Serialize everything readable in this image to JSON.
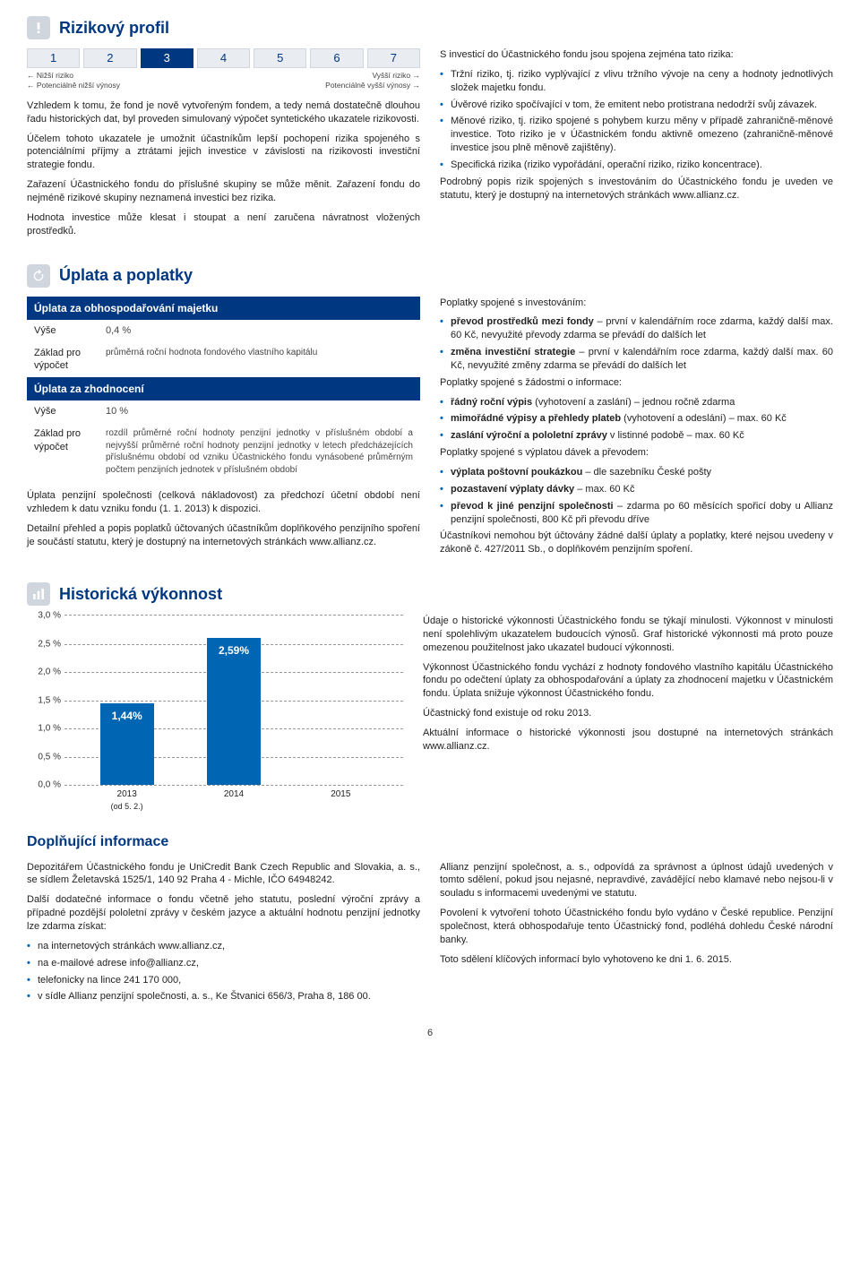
{
  "risk": {
    "title": "Rizikový profil",
    "scale": {
      "values": [
        "1",
        "2",
        "3",
        "4",
        "5",
        "6",
        "7"
      ],
      "selected_index": 2
    },
    "labels": {
      "left_top": "Nižší riziko",
      "left_bottom": "Potenciálně nižší výnosy",
      "right_top": "Vyšší riziko",
      "right_bottom": "Potenciálně vyšší výnosy"
    },
    "left_paras": [
      "Vzhledem k tomu, že fond je nově vytvořeným fondem, a tedy nemá dostatečně dlouhou řadu historických dat, byl proveden simulovaný výpočet syntetického ukazatele rizikovosti.",
      "Účelem tohoto ukazatele je umožnit účastníkům lepší pochopení rizika spojeného s potenciálními příjmy a ztrátami jejich investice v závislosti na rizikovosti investiční strategie fondu.",
      "Zařazení Účastnického fondu do příslušné skupiny se může měnit. Zařazení fondu do nejméně rizikové skupiny neznamená investici bez rizika.",
      "Hodnota investice může klesat i stoupat a není zaručena návratnost vložených prostředků."
    ],
    "right_intro": "S investicí do Účastnického fondu jsou spojena zejména tato rizika:",
    "right_items": [
      "Tržní riziko, tj. riziko vyplývající z vlivu tržního vývoje na ceny a hodnoty jednotlivých složek majetku fondu.",
      "Úvěrové riziko spočívající v tom, že emitent nebo protistrana nedodrží svůj závazek.",
      "Měnové riziko, tj. riziko spojené s pohybem kurzu měny v případě zahraničně-měnové investice. Toto riziko je v Účastnickém fondu aktivně omezeno (zahraničně-měnové investice jsou plně měnově zajištěny).",
      "Specifická rizika (riziko vypořádání, operační riziko, riziko koncentrace)."
    ],
    "right_closing": "Podrobný popis rizik spojených s investováním do Účastnického fondu je uveden ve statutu, který je dostupný na internetových stránkách www.allianz.cz."
  },
  "fees": {
    "title": "Úplata a poplatky",
    "table": {
      "header1": "Úplata za obhospodařování majetku",
      "row1_label": "Výše",
      "row1_value": "0,4 %",
      "row2_label": "Základ pro výpočet",
      "row2_value": "průměrná roční hodnota fondového vlastního kapitálu",
      "header2": "Úplata za zhodnocení",
      "row3_label": "Výše",
      "row3_value": "10 %",
      "row4_label": "Základ pro výpočet",
      "row4_value": "rozdíl průměrné roční hodnoty penzijní jednotky v příslušném období a nejvyšší průměrné roční hodnoty penzijní jednotky v letech předcházejících příslušnému období od vzniku Účastnického fondu vynásobené průměrným počtem penzijních jednotek v příslušném období"
    },
    "left_paras": [
      "Úplata penzijní společnosti (celková nákladovost) za předchozí účetní období není vzhledem k datu vzniku fondu (1. 1. 2013) k dispozici.",
      "Detailní přehled a popis poplatků účtovaných účastníkům doplňkového penzijního spoření je součástí statutu, který je dostupný na internetových stránkách www.allianz.cz."
    ],
    "r1_intro": "Poplatky spojené s investováním:",
    "r1_items": [
      "<b>převod prostředků mezi fondy</b> – první v kalendářním roce zdarma, každý další max. 60 Kč, nevyužité převody zdarma se převádí do dalších let",
      "<b>změna investiční strategie</b> – první v kalendářním roce zdarma, každý další max. 60 Kč, nevyužité změny zdarma se převádí do dalších let"
    ],
    "r2_intro": "Poplatky spojené s žádostmi o informace:",
    "r2_items": [
      "<b>řádný roční výpis</b> (vyhotovení a zaslání) – jednou ročně zdarma",
      "<b>mimořádné výpisy a přehledy plateb</b> (vyhotovení a odeslání) – max. 60 Kč",
      "<b>zaslání výroční a pololetní zprávy</b> v listinné podobě – max. 60 Kč"
    ],
    "r3_intro": "Poplatky spojené s výplatou dávek a převodem:",
    "r3_items": [
      "<b>výplata poštovní poukázkou</b> – dle sazebníku České pošty",
      "<b>pozastavení výplaty dávky</b> – max. 60 Kč",
      "<b>převod k jiné penzijní společnosti</b> – zdarma po 60 měsících spořicí doby u Allianz penzijní společnosti, 800 Kč při převodu dříve"
    ],
    "r_closing": "Účastníkovi nemohou být účtovány žádné další úplaty a poplatky, které nejsou uvedeny v zákoně č. 427/2011 Sb., o doplňkovém penzijním spoření."
  },
  "hist": {
    "title": "Historická výkonnost",
    "chart": {
      "type": "bar",
      "y_max": 3.0,
      "y_step": 0.5,
      "y_ticks": [
        "3,0 %",
        "2,5 %",
        "2,0 %",
        "1,5 %",
        "1,0 %",
        "0,5 %",
        "0,0 %"
      ],
      "bar_color": "#0066b3",
      "grid_color": "#999999",
      "label_color": "#ffffff",
      "categories": [
        {
          "x": "2013",
          "x_sub": "(od 5. 2.)",
          "value": 1.44,
          "label": "1,44%"
        },
        {
          "x": "2014",
          "x_sub": "",
          "value": 2.59,
          "label": "2,59%"
        },
        {
          "x": "2015",
          "x_sub": "",
          "value": null,
          "label": ""
        }
      ]
    },
    "right_paras": [
      "Údaje o historické výkonnosti Účastnického fondu se týkají minulosti. Výkonnost v minulosti není spolehlivým ukazatelem budoucích výnosů. Graf historické výkonnosti má proto pouze omezenou použitelnost jako ukazatel budoucí výkonnosti.",
      "Výkonnost Účastnického fondu vychází z hodnoty fondového vlastního kapitálu Účastnického fondu po odečtení úplaty za obhospodařování a úplaty za zhodnocení majetku v Účastnickém fondu. Úplata snižuje výkonnost Účastnického fondu.",
      "Účastnický fond existuje od roku 2013.",
      "Aktuální informace o historické výkonnosti jsou dostupné na internetových stránkách www.allianz.cz."
    ]
  },
  "supp": {
    "title": "Doplňující informace",
    "left_p1": "Depozitářem Účastnického fondu je UniCredit Bank Czech Republic and Slovakia, a. s., se sídlem Želetavská 1525/1, 140 92  Praha 4 - Michle, IČO 64948242.",
    "left_p2": "Další dodatečné informace o fondu včetně jeho statutu, poslední výroční zprávy a případné pozdější pololetní zprávy v českém jazyce a aktuální hodnotu penzijní jednotky lze zdarma získat:",
    "left_items": [
      "na internetových stránkách www.allianz.cz,",
      "na e-mailové adrese info@allianz.cz,",
      "telefonicky na lince 241 170 000,",
      "v sídle Allianz penzijní společnosti, a. s., Ke Štvanici 656/3, Praha 8, 186 00."
    ],
    "right_p1": "Allianz penzijní společnost, a. s., odpovídá za správnost a úplnost údajů uvedených v tomto sdělení, pokud jsou nejasné, nepravdivé, zavádějící nebo klamavé nebo nejsou-li v souladu s informacemi uvedenými ve statutu.",
    "right_p2": "Povolení k vytvoření tohoto Účastnického fondu bylo vydáno v České republice. Penzijní společnost, která obhospodařuje tento Účastnický fond, podléhá dohledu České národní banky.",
    "right_p3": "Toto sdělení klíčových informací bylo vyhotoveno ke dni 1. 6. 2015."
  },
  "page_number": "6"
}
